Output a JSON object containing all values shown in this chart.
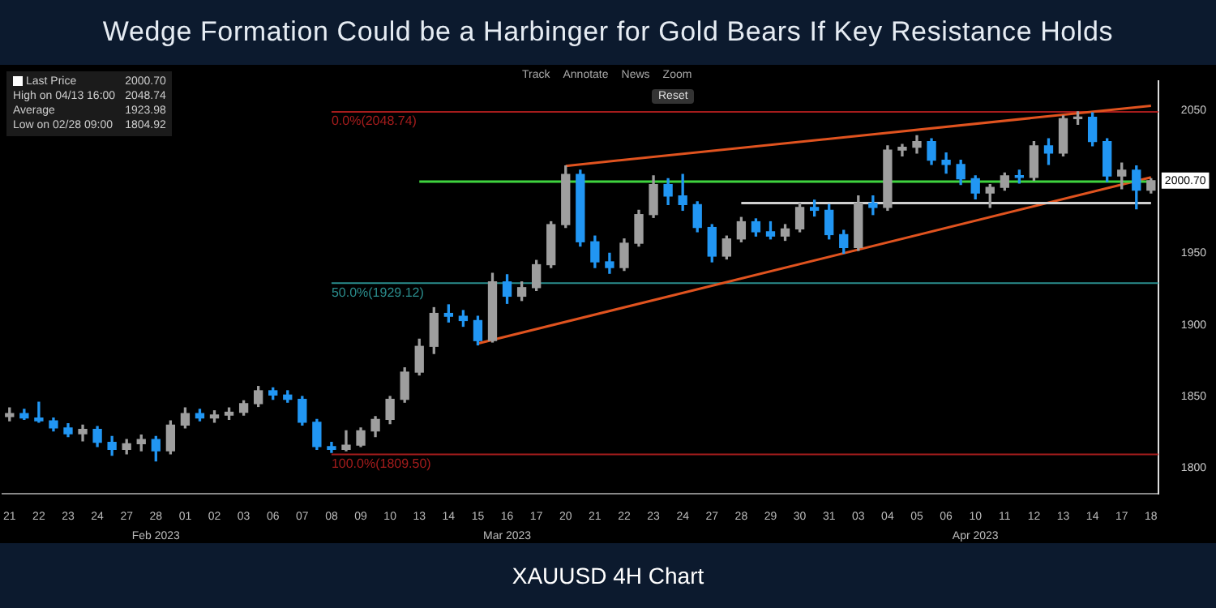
{
  "chart_data": {
    "type": "candlestick",
    "title": "Wedge Formation Could be a Harbinger for Gold Bears If Key Resistance Holds",
    "categories": [
      "21",
      null,
      "22",
      null,
      "23",
      null,
      "24",
      null,
      "27",
      null,
      "28",
      null,
      "01",
      null,
      "02",
      null,
      "03",
      null,
      "06",
      null,
      "07",
      null,
      "08",
      null,
      "09",
      null,
      "10",
      null,
      "13",
      null,
      "14",
      null,
      "15",
      null,
      "16",
      null,
      "17",
      null,
      "20",
      null,
      "21",
      null,
      "22",
      null,
      "23",
      null,
      "24",
      null,
      "27",
      null,
      "28",
      null,
      "29",
      null,
      "30",
      null,
      "31",
      null,
      "03",
      null,
      "04",
      null,
      "05",
      null,
      "06",
      null,
      "10",
      null,
      "11",
      null,
      "12",
      null,
      "13",
      null,
      "14",
      null,
      "17",
      null,
      "18"
    ],
    "ohlc": [
      [
        1836,
        1842,
        1833,
        1838
      ],
      [
        1838,
        1841,
        1834,
        1835
      ],
      [
        1835,
        1846,
        1832,
        1833
      ],
      [
        1833,
        1835,
        1826,
        1828
      ],
      [
        1828,
        1831,
        1822,
        1824
      ],
      [
        1824,
        1830,
        1819,
        1827
      ],
      [
        1827,
        1829,
        1815,
        1818
      ],
      [
        1818,
        1822,
        1809,
        1813
      ],
      [
        1813,
        1820,
        1810,
        1817
      ],
      [
        1817,
        1823,
        1812,
        1820
      ],
      [
        1820,
        1822,
        1805,
        1812
      ],
      [
        1812,
        1833,
        1810,
        1830
      ],
      [
        1830,
        1842,
        1828,
        1838
      ],
      [
        1838,
        1841,
        1833,
        1835
      ],
      [
        1835,
        1840,
        1832,
        1837
      ],
      [
        1837,
        1842,
        1834,
        1839
      ],
      [
        1839,
        1847,
        1837,
        1845
      ],
      [
        1845,
        1857,
        1843,
        1854
      ],
      [
        1854,
        1856,
        1848,
        1851
      ],
      [
        1851,
        1854,
        1846,
        1848
      ],
      [
        1848,
        1850,
        1830,
        1832
      ],
      [
        1832,
        1834,
        1813,
        1815
      ],
      [
        1815,
        1818,
        1811,
        1813
      ],
      [
        1813,
        1826,
        1812,
        1816
      ],
      [
        1816,
        1828,
        1815,
        1826
      ],
      [
        1826,
        1836,
        1822,
        1834
      ],
      [
        1834,
        1850,
        1831,
        1848
      ],
      [
        1848,
        1870,
        1846,
        1867
      ],
      [
        1867,
        1890,
        1865,
        1885
      ],
      [
        1885,
        1912,
        1880,
        1908
      ],
      [
        1908,
        1914,
        1902,
        1906
      ],
      [
        1906,
        1910,
        1899,
        1903
      ],
      [
        1903,
        1906,
        1886,
        1889
      ],
      [
        1889,
        1936,
        1888,
        1930
      ],
      [
        1930,
        1935,
        1915,
        1920
      ],
      [
        1920,
        1930,
        1917,
        1926
      ],
      [
        1926,
        1945,
        1924,
        1942
      ],
      [
        1942,
        1972,
        1940,
        1970
      ],
      [
        1970,
        2011,
        1968,
        2005
      ],
      [
        2005,
        2008,
        1955,
        1958
      ],
      [
        1958,
        1962,
        1940,
        1944
      ],
      [
        1944,
        1950,
        1936,
        1940
      ],
      [
        1940,
        1960,
        1938,
        1957
      ],
      [
        1957,
        1980,
        1955,
        1977
      ],
      [
        1977,
        2004,
        1975,
        1998
      ],
      [
        1998,
        2002,
        1984,
        1990
      ],
      [
        1990,
        2005,
        1980,
        1984
      ],
      [
        1984,
        1986,
        1965,
        1968
      ],
      [
        1968,
        1970,
        1944,
        1948
      ],
      [
        1948,
        1962,
        1946,
        1960
      ],
      [
        1960,
        1975,
        1958,
        1972
      ],
      [
        1972,
        1974,
        1962,
        1965
      ],
      [
        1965,
        1972,
        1960,
        1962
      ],
      [
        1962,
        1970,
        1959,
        1967
      ],
      [
        1967,
        1985,
        1965,
        1982
      ],
      [
        1982,
        1987,
        1976,
        1980
      ],
      [
        1980,
        1984,
        1960,
        1963
      ],
      [
        1963,
        1966,
        1950,
        1954
      ],
      [
        1954,
        1990,
        1952,
        1985
      ],
      [
        1985,
        1990,
        1977,
        1982
      ],
      [
        1982,
        2025,
        1980,
        2022
      ],
      [
        2022,
        2026,
        2018,
        2024
      ],
      [
        2024,
        2032,
        2020,
        2028
      ],
      [
        2028,
        2030,
        2012,
        2015
      ],
      [
        2015,
        2020,
        2006,
        2012
      ],
      [
        2012,
        2015,
        1998,
        2002
      ],
      [
        2002,
        2004,
        1988,
        1992
      ],
      [
        1992,
        1998,
        1982,
        1996
      ],
      [
        1996,
        2006,
        1994,
        2004
      ],
      [
        2004,
        2008,
        1999,
        2003
      ],
      [
        2003,
        2028,
        2001,
        2025
      ],
      [
        2025,
        2030,
        2012,
        2020
      ],
      [
        2020,
        2046,
        2018,
        2044
      ],
      [
        2044,
        2048.74,
        2040,
        2045
      ],
      [
        2045,
        2048,
        2025,
        2028
      ],
      [
        2028,
        2030,
        2000,
        2004
      ],
      [
        2004,
        2013,
        1995,
        2008
      ],
      [
        2008,
        2011,
        1981,
        1994
      ],
      [
        1994,
        2002,
        1992,
        2000.7
      ]
    ],
    "colors": [
      "#9e9e9e",
      "#2196f3",
      "#2196f3",
      "#2196f3",
      "#2196f3",
      "#9e9e9e",
      "#2196f3",
      "#2196f3",
      "#9e9e9e",
      "#9e9e9e",
      "#2196f3",
      "#9e9e9e",
      "#9e9e9e",
      "#2196f3",
      "#9e9e9e",
      "#9e9e9e",
      "#9e9e9e",
      "#9e9e9e",
      "#2196f3",
      "#2196f3",
      "#2196f3",
      "#2196f3",
      "#2196f3",
      "#9e9e9e",
      "#9e9e9e",
      "#9e9e9e",
      "#9e9e9e",
      "#9e9e9e",
      "#9e9e9e",
      "#9e9e9e",
      "#2196f3",
      "#2196f3",
      "#2196f3",
      "#9e9e9e",
      "#2196f3",
      "#9e9e9e",
      "#9e9e9e",
      "#9e9e9e",
      "#9e9e9e",
      "#2196f3",
      "#2196f3",
      "#2196f3",
      "#9e9e9e",
      "#9e9e9e",
      "#9e9e9e",
      "#2196f3",
      "#2196f3",
      "#2196f3",
      "#2196f3",
      "#9e9e9e",
      "#9e9e9e",
      "#2196f3",
      "#2196f3",
      "#9e9e9e",
      "#9e9e9e",
      "#2196f3",
      "#2196f3",
      "#2196f3",
      "#9e9e9e",
      "#2196f3",
      "#9e9e9e",
      "#9e9e9e",
      "#9e9e9e",
      "#2196f3",
      "#2196f3",
      "#2196f3",
      "#2196f3",
      "#9e9e9e",
      "#9e9e9e",
      "#2196f3",
      "#9e9e9e",
      "#2196f3",
      "#9e9e9e",
      "#9e9e9e",
      "#2196f3",
      "#2196f3",
      "#9e9e9e",
      "#2196f3",
      "#9e9e9e"
    ],
    "series": [
      {
        "type": "line",
        "color": "#3fd33f",
        "values": [
          null,
          null,
          null,
          null,
          null,
          null,
          null,
          null,
          null,
          null,
          null,
          null,
          null,
          null,
          null,
          null,
          null,
          null,
          null,
          null,
          null,
          null,
          null,
          null,
          null,
          null,
          null,
          null,
          2000,
          null,
          null,
          null,
          null,
          null,
          null,
          null,
          null,
          null,
          null,
          null,
          null,
          null,
          null,
          null,
          null,
          null,
          null,
          null,
          null,
          null,
          null,
          null,
          null,
          null,
          null,
          null,
          null,
          null,
          null,
          null,
          null,
          null,
          null,
          null,
          null,
          null,
          null,
          null,
          null,
          null,
          null,
          null,
          null,
          null,
          null,
          null,
          null,
          null,
          2000
        ]
      },
      {
        "type": "line",
        "color": "#d0d0d0",
        "values": [
          null,
          null,
          null,
          null,
          null,
          null,
          null,
          null,
          null,
          null,
          null,
          null,
          null,
          null,
          null,
          null,
          null,
          null,
          null,
          null,
          null,
          null,
          null,
          null,
          null,
          null,
          null,
          null,
          null,
          null,
          null,
          null,
          null,
          null,
          null,
          null,
          null,
          null,
          null,
          null,
          null,
          null,
          null,
          null,
          null,
          null,
          null,
          null,
          null,
          null,
          1985,
          null,
          null,
          null,
          null,
          null,
          null,
          null,
          null,
          null,
          null,
          null,
          null,
          null,
          null,
          null,
          null,
          null,
          null,
          null,
          null,
          null,
          null,
          null,
          null,
          null,
          null,
          null,
          1985
        ]
      },
      {
        "type": "line",
        "color": "#e0531f",
        "values": [
          null,
          null,
          null,
          null,
          null,
          null,
          null,
          null,
          null,
          null,
          null,
          null,
          null,
          null,
          null,
          null,
          null,
          null,
          null,
          null,
          null,
          null,
          null,
          null,
          null,
          null,
          null,
          null,
          null,
          null,
          null,
          null,
          null,
          null,
          null,
          null,
          null,
          null,
          2011,
          null,
          null,
          null,
          null,
          null,
          null,
          null,
          null,
          null,
          null,
          null,
          null,
          null,
          null,
          null,
          null,
          null,
          null,
          null,
          null,
          null,
          null,
          null,
          null,
          null,
          null,
          null,
          null,
          null,
          null,
          null,
          null,
          null,
          null,
          null,
          null,
          null,
          null,
          null,
          2053
        ]
      },
      {
        "type": "line",
        "color": "#e0531f",
        "values": [
          null,
          null,
          null,
          null,
          null,
          null,
          null,
          null,
          null,
          null,
          null,
          null,
          null,
          null,
          null,
          null,
          null,
          null,
          null,
          null,
          null,
          null,
          null,
          null,
          null,
          null,
          null,
          null,
          null,
          null,
          null,
          null,
          1887,
          null,
          null,
          null,
          null,
          null,
          null,
          null,
          null,
          null,
          null,
          null,
          null,
          null,
          null,
          null,
          null,
          null,
          null,
          null,
          null,
          null,
          null,
          null,
          null,
          null,
          null,
          null,
          null,
          null,
          null,
          null,
          null,
          null,
          null,
          null,
          null,
          null,
          null,
          null,
          null,
          null,
          null,
          null,
          null,
          null,
          2003
        ]
      }
    ],
    "ref_lines": [
      {
        "axis": "y",
        "value": 2048.74,
        "label": "0.0%(2048.74)",
        "color": "#a51c1c"
      },
      {
        "axis": "y",
        "value": 1929.12,
        "label": "50.0%(1929.12)",
        "color": "#2a8c8c"
      },
      {
        "axis": "y",
        "value": 1809.5,
        "label": "100.0%(1809.50)",
        "color": "#a51c1c"
      }
    ],
    "annotations": [
      "Last Price",
      "2000.70",
      "High on 04/13 16:00",
      "2048.74",
      "Average",
      "1923.98",
      "Low on 02/28 09:00",
      "1804.92",
      "Track",
      "Annotate",
      "News",
      "Zoom",
      "Reset",
      "Feb 2023",
      "Mar 2023",
      "Apr 2023",
      {
        "text": "2000.70",
        "y": 2000.7
      },
      "XAUUSD 4H Chart"
    ],
    "ylim": [
      1782,
      2070
    ],
    "yticks": [
      1800,
      1850,
      1900,
      1950,
      2050
    ],
    "grid": false,
    "legend": false,
    "marker": "none"
  }
}
